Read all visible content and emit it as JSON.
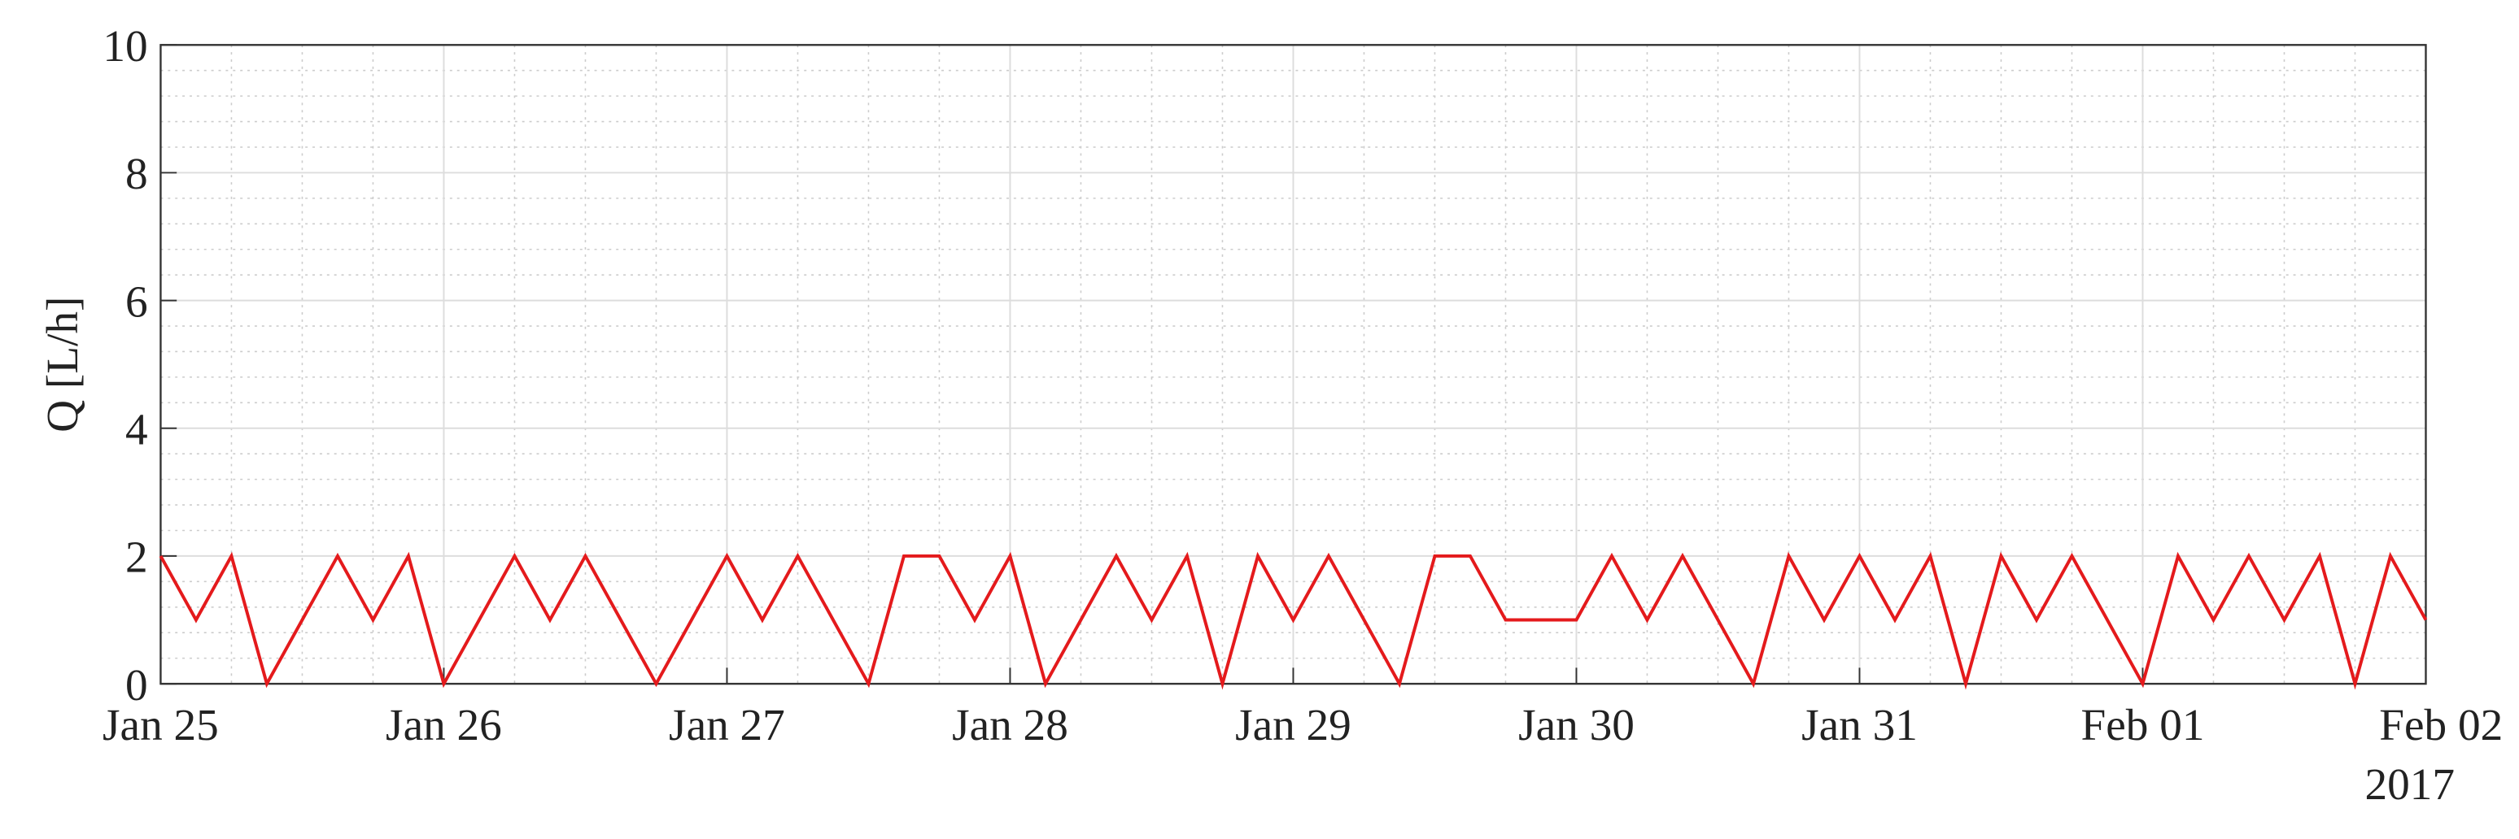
{
  "chart_data": {
    "type": "line",
    "ylabel": "Q [L/h]",
    "x_note": "2017",
    "xlim": [
      0,
      8
    ],
    "xticks": [
      {
        "value": 0,
        "label": "Jan 25"
      },
      {
        "value": 1,
        "label": "Jan 26"
      },
      {
        "value": 2,
        "label": "Jan 27"
      },
      {
        "value": 3,
        "label": "Jan 28"
      },
      {
        "value": 4,
        "label": "Jan 29"
      },
      {
        "value": 5,
        "label": "Jan 30"
      },
      {
        "value": 6,
        "label": "Jan 31"
      },
      {
        "value": 7,
        "label": "Feb 01"
      },
      {
        "value": 8,
        "label": "Feb 02"
      }
    ],
    "ylim": [
      0,
      10
    ],
    "yticks": [
      0,
      2,
      4,
      6,
      8,
      10
    ],
    "grid": true,
    "minor_grid": true,
    "x": [
      0,
      0.125,
      0.25,
      0.375,
      0.5,
      0.625,
      0.75,
      0.875,
      1,
      1.125,
      1.25,
      1.375,
      1.5,
      1.625,
      1.75,
      1.875,
      2,
      2.125,
      2.25,
      2.375,
      2.5,
      2.625,
      2.75,
      2.875,
      3,
      3.125,
      3.25,
      3.375,
      3.5,
      3.625,
      3.75,
      3.875,
      4,
      4.125,
      4.25,
      4.375,
      4.5,
      4.625,
      4.75,
      4.875,
      5,
      5.125,
      5.25,
      5.375,
      5.5,
      5.625,
      5.75,
      5.875,
      6,
      6.125,
      6.25,
      6.375,
      6.5,
      6.625,
      6.75,
      6.875,
      7,
      7.125,
      7.25,
      7.375,
      7.5,
      7.625,
      7.75,
      7.875,
      8
    ],
    "series": [
      {
        "color": "#e41a1c",
        "values": [
          2,
          1,
          2,
          0,
          1,
          2,
          1,
          2,
          0,
          1,
          2,
          1,
          2,
          1,
          0,
          1,
          2,
          1,
          2,
          1,
          0,
          2,
          2,
          1,
          2,
          0,
          1,
          2,
          1,
          2,
          0,
          2,
          1,
          2,
          1,
          0,
          2,
          2,
          1,
          1,
          1,
          2,
          1,
          2,
          1,
          0,
          2,
          1,
          2,
          1,
          2,
          0,
          2,
          1,
          2,
          1,
          0,
          2,
          1,
          2,
          1,
          2,
          0,
          2,
          1
        ]
      }
    ]
  }
}
